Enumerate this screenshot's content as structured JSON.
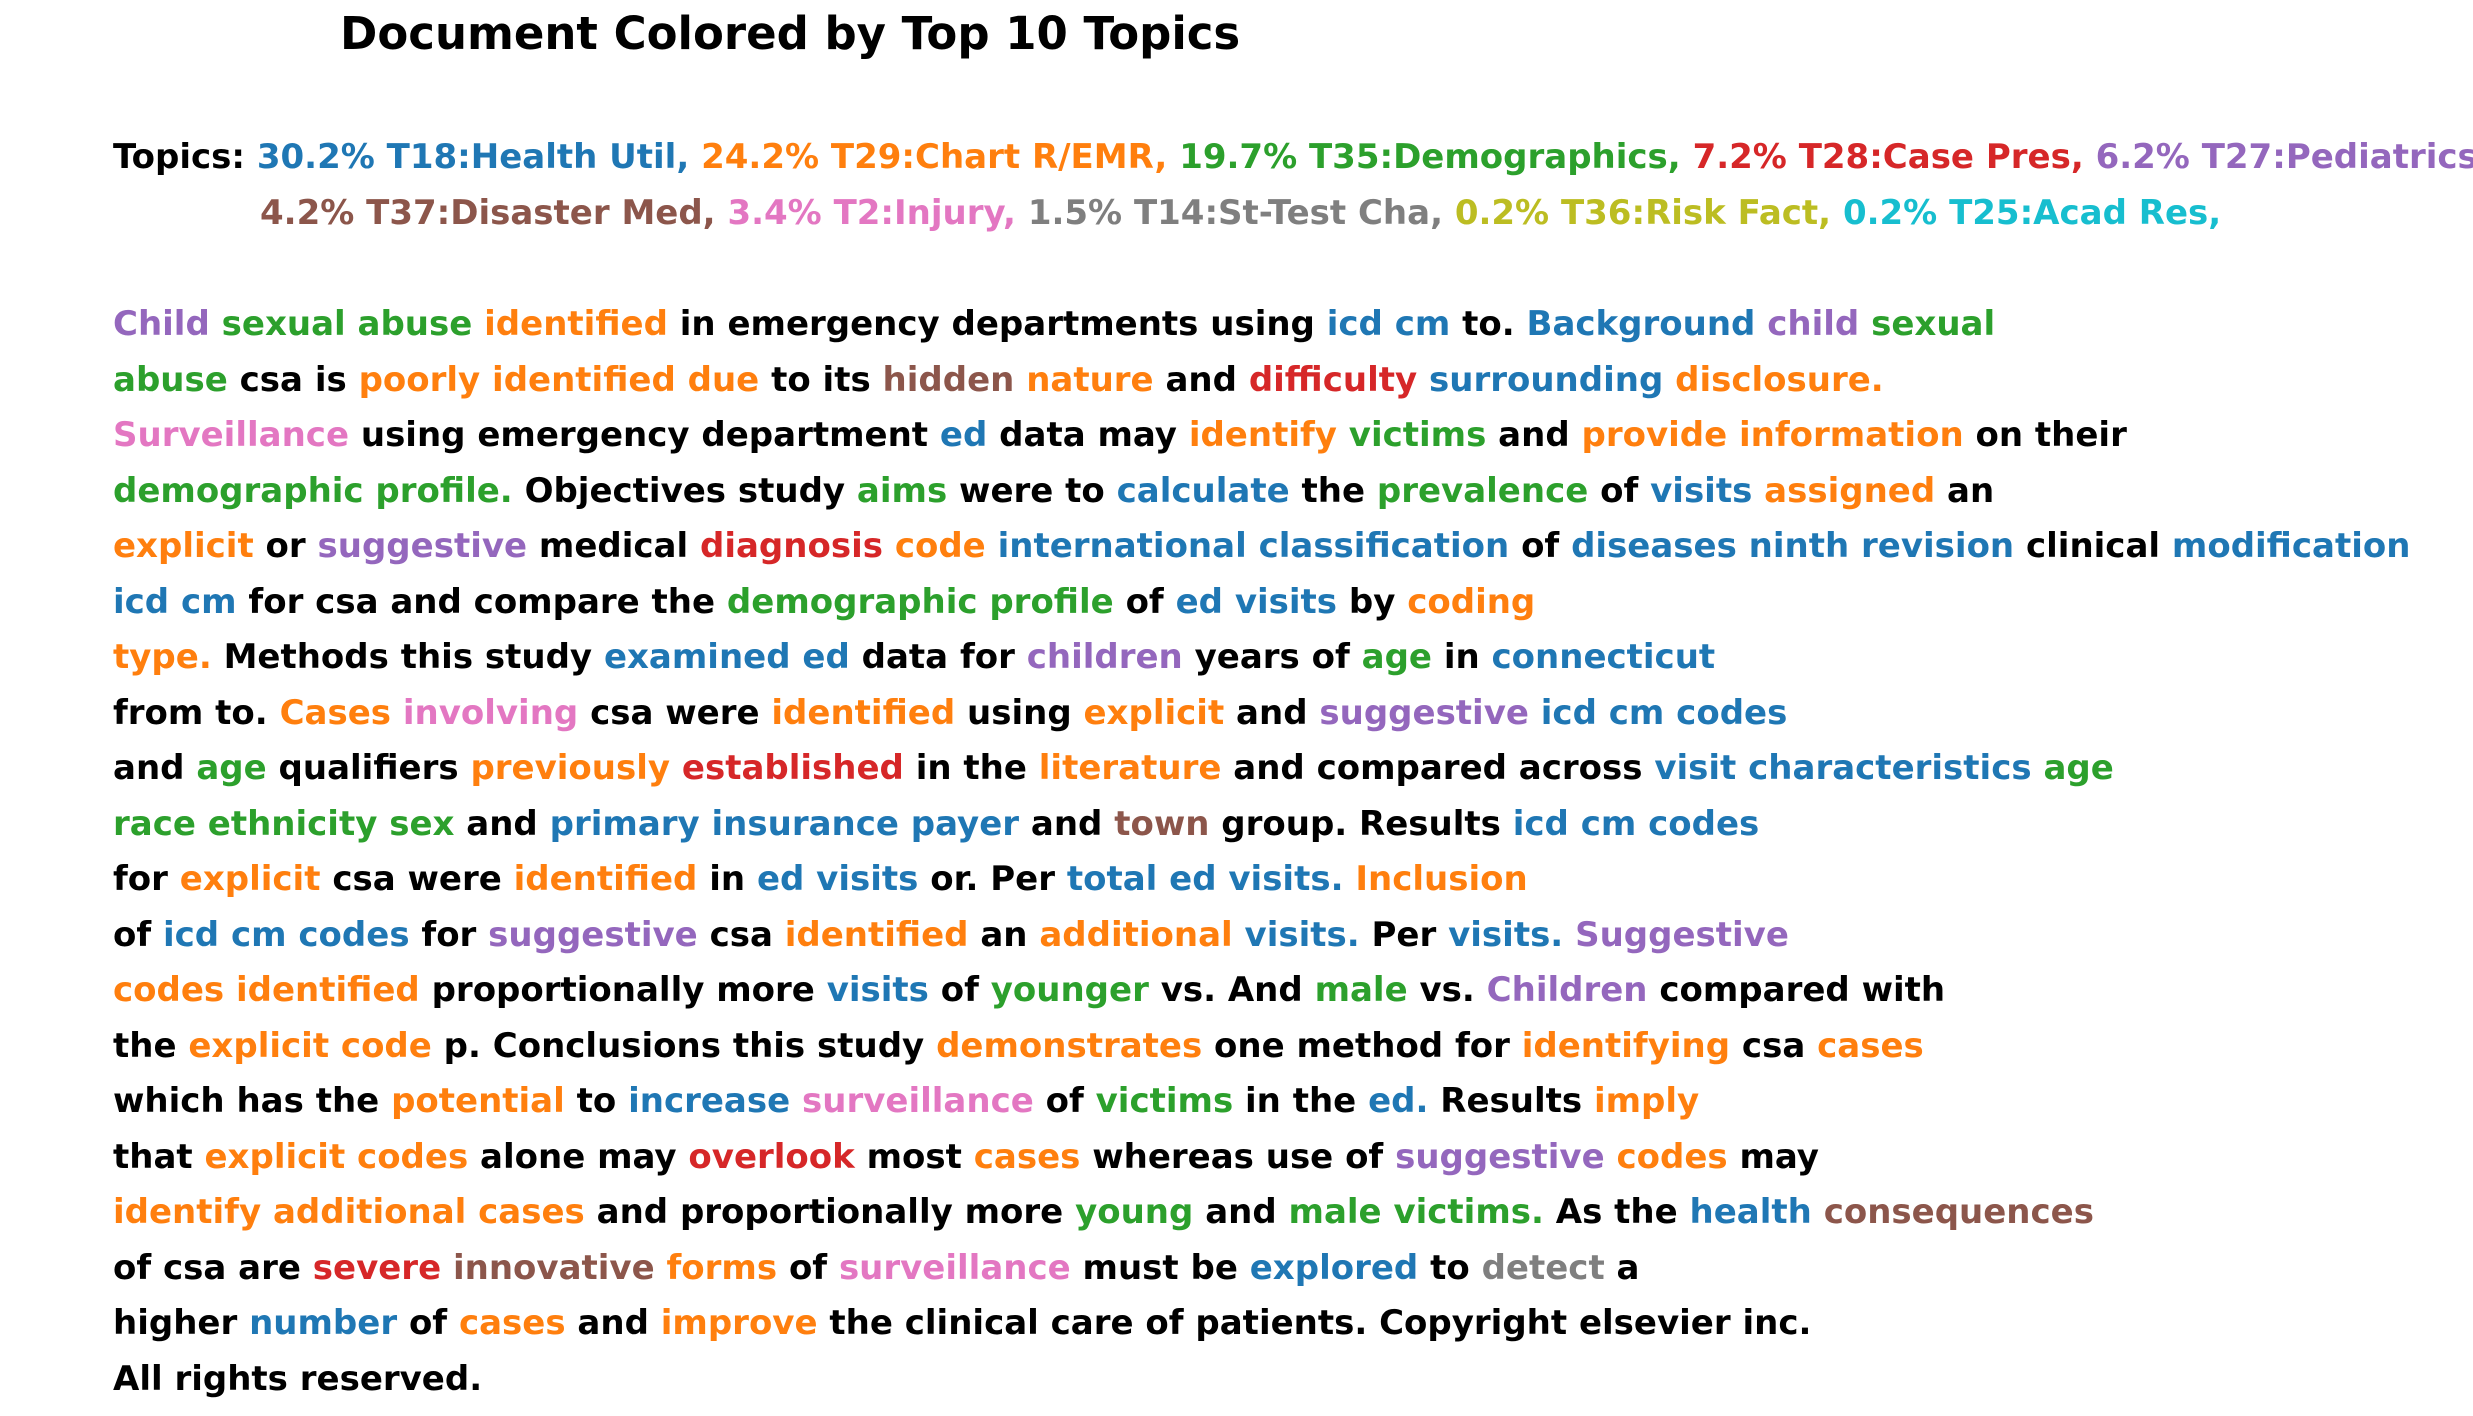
{
  "title": "Document Colored by Top 10 Topics",
  "topics_label": "Topics:",
  "colors": {
    "c0": "#000000",
    "t18": "#1f77b4",
    "t29": "#ff7f0e",
    "t35": "#2ca02c",
    "t28": "#d62728",
    "t27": "#9467bd",
    "t37": "#8c564b",
    "t2": "#e377c2",
    "t14": "#7f7f7f",
    "t36": "#bcbd22",
    "t25": "#17becf"
  },
  "topics": [
    [
      {
        "text": "30.2% T18:Health Util,",
        "c": "t18"
      },
      {
        "text": "24.2% T29:Chart R/EMR,",
        "c": "t29"
      },
      {
        "text": "19.7% T35:Demographics,",
        "c": "t35"
      },
      {
        "text": "7.2% T28:Case Pres,",
        "c": "t28"
      },
      {
        "text": "6.2% T27:Pediatrics,",
        "c": "t27"
      }
    ],
    [
      {
        "text": "4.2% T37:Disaster Med,",
        "c": "t37"
      },
      {
        "text": "3.4% T2:Injury,",
        "c": "t2"
      },
      {
        "text": "1.5% T14:St-Test Cha,",
        "c": "t14"
      },
      {
        "text": "0.2% T36:Risk Fact,",
        "c": "t36"
      },
      {
        "text": "0.2% T25:Acad Res,",
        "c": "t25"
      }
    ]
  ],
  "document_lines": [
    [
      [
        "Child",
        "t27"
      ],
      [
        "sexual abuse",
        "t35"
      ],
      [
        "identified",
        "t29"
      ],
      [
        "in emergency departments using",
        "c0"
      ],
      [
        "icd cm",
        "t18"
      ],
      [
        "to.",
        "c0"
      ],
      [
        "Background",
        "t18"
      ],
      [
        "child",
        "t27"
      ],
      [
        "sexual",
        "t35"
      ]
    ],
    [
      [
        "abuse",
        "t35"
      ],
      [
        "csa is",
        "c0"
      ],
      [
        "poorly identified due",
        "t29"
      ],
      [
        "to its",
        "c0"
      ],
      [
        "hidden",
        "t37"
      ],
      [
        "nature",
        "t29"
      ],
      [
        "and",
        "c0"
      ],
      [
        "difficulty",
        "t28"
      ],
      [
        "surrounding",
        "t18"
      ],
      [
        "disclosure.",
        "t29"
      ]
    ],
    [
      [
        "Surveillance",
        "t2"
      ],
      [
        "using emergency department",
        "c0"
      ],
      [
        "ed",
        "t18"
      ],
      [
        "data may",
        "c0"
      ],
      [
        "identify",
        "t29"
      ],
      [
        "victims",
        "t35"
      ],
      [
        "and",
        "c0"
      ],
      [
        "provide information",
        "t29"
      ],
      [
        "on their",
        "c0"
      ]
    ],
    [
      [
        "demographic profile.",
        "t35"
      ],
      [
        "Objectives study",
        "c0"
      ],
      [
        "aims",
        "t35"
      ],
      [
        "were to",
        "c0"
      ],
      [
        "calculate",
        "t18"
      ],
      [
        "the",
        "c0"
      ],
      [
        "prevalence",
        "t35"
      ],
      [
        "of",
        "c0"
      ],
      [
        "visits",
        "t18"
      ],
      [
        "assigned",
        "t29"
      ],
      [
        "an",
        "c0"
      ]
    ],
    [
      [
        "explicit",
        "t29"
      ],
      [
        "or",
        "c0"
      ],
      [
        "suggestive",
        "t27"
      ],
      [
        "medical",
        "c0"
      ],
      [
        "diagnosis",
        "t28"
      ],
      [
        "code",
        "t29"
      ],
      [
        "international classification",
        "t18"
      ],
      [
        "of",
        "c0"
      ],
      [
        "diseases ninth revision",
        "t18"
      ],
      [
        "clinical",
        "c0"
      ],
      [
        "modification",
        "t18"
      ]
    ],
    [
      [
        "icd cm",
        "t18"
      ],
      [
        "for csa and compare the",
        "c0"
      ],
      [
        "demographic profile",
        "t35"
      ],
      [
        "of",
        "c0"
      ],
      [
        "ed visits",
        "t18"
      ],
      [
        "by",
        "c0"
      ],
      [
        "coding",
        "t29"
      ]
    ],
    [
      [
        "type.",
        "t29"
      ],
      [
        "Methods this study",
        "c0"
      ],
      [
        "examined ed",
        "t18"
      ],
      [
        "data for",
        "c0"
      ],
      [
        "children",
        "t27"
      ],
      [
        "years of",
        "c0"
      ],
      [
        "age",
        "t35"
      ],
      [
        "in",
        "c0"
      ],
      [
        "connecticut",
        "t18"
      ]
    ],
    [
      [
        "from to.",
        "c0"
      ],
      [
        "Cases",
        "t29"
      ],
      [
        "involving",
        "t2"
      ],
      [
        "csa were",
        "c0"
      ],
      [
        "identified",
        "t29"
      ],
      [
        "using",
        "c0"
      ],
      [
        "explicit",
        "t29"
      ],
      [
        "and",
        "c0"
      ],
      [
        "suggestive",
        "t27"
      ],
      [
        "icd cm codes",
        "t18"
      ]
    ],
    [
      [
        "and",
        "c0"
      ],
      [
        "age",
        "t35"
      ],
      [
        "qualifiers",
        "c0"
      ],
      [
        "previously",
        "t29"
      ],
      [
        "established",
        "t28"
      ],
      [
        "in the",
        "c0"
      ],
      [
        "literature",
        "t29"
      ],
      [
        "and compared across",
        "c0"
      ],
      [
        "visit characteristics",
        "t18"
      ],
      [
        "age",
        "t35"
      ]
    ],
    [
      [
        "race ethnicity sex",
        "t35"
      ],
      [
        "and",
        "c0"
      ],
      [
        "primary insurance payer",
        "t18"
      ],
      [
        "and",
        "c0"
      ],
      [
        "town",
        "t37"
      ],
      [
        "group. Results",
        "c0"
      ],
      [
        "icd cm codes",
        "t18"
      ]
    ],
    [
      [
        "for",
        "c0"
      ],
      [
        "explicit",
        "t29"
      ],
      [
        "csa were",
        "c0"
      ],
      [
        "identified",
        "t29"
      ],
      [
        "in",
        "c0"
      ],
      [
        "ed visits",
        "t18"
      ],
      [
        "or. Per",
        "c0"
      ],
      [
        "total ed visits.",
        "t18"
      ],
      [
        "Inclusion",
        "t29"
      ]
    ],
    [
      [
        "of",
        "c0"
      ],
      [
        "icd cm codes",
        "t18"
      ],
      [
        "for",
        "c0"
      ],
      [
        "suggestive",
        "t27"
      ],
      [
        "csa",
        "c0"
      ],
      [
        "identified",
        "t29"
      ],
      [
        "an",
        "c0"
      ],
      [
        "additional",
        "t29"
      ],
      [
        "visits.",
        "t18"
      ],
      [
        "Per",
        "c0"
      ],
      [
        "visits.",
        "t18"
      ],
      [
        "Suggestive",
        "t27"
      ]
    ],
    [
      [
        "codes identified",
        "t29"
      ],
      [
        "proportionally more",
        "c0"
      ],
      [
        "visits",
        "t18"
      ],
      [
        "of",
        "c0"
      ],
      [
        "younger",
        "t35"
      ],
      [
        "vs. And",
        "c0"
      ],
      [
        "male",
        "t35"
      ],
      [
        "vs.",
        "c0"
      ],
      [
        "Children",
        "t27"
      ],
      [
        "compared with",
        "c0"
      ]
    ],
    [
      [
        "the",
        "c0"
      ],
      [
        "explicit code",
        "t29"
      ],
      [
        "p. Conclusions this study",
        "c0"
      ],
      [
        "demonstrates",
        "t29"
      ],
      [
        "one method for",
        "c0"
      ],
      [
        "identifying",
        "t29"
      ],
      [
        "csa",
        "c0"
      ],
      [
        "cases",
        "t29"
      ]
    ],
    [
      [
        "which has the",
        "c0"
      ],
      [
        "potential",
        "t29"
      ],
      [
        "to",
        "c0"
      ],
      [
        "increase",
        "t18"
      ],
      [
        "surveillance",
        "t2"
      ],
      [
        "of",
        "c0"
      ],
      [
        "victims",
        "t35"
      ],
      [
        "in the",
        "c0"
      ],
      [
        "ed.",
        "t18"
      ],
      [
        "Results",
        "c0"
      ],
      [
        "imply",
        "t29"
      ]
    ],
    [
      [
        "that",
        "c0"
      ],
      [
        "explicit codes",
        "t29"
      ],
      [
        "alone may",
        "c0"
      ],
      [
        "overlook",
        "t28"
      ],
      [
        "most",
        "c0"
      ],
      [
        "cases",
        "t29"
      ],
      [
        "whereas use of",
        "c0"
      ],
      [
        "suggestive",
        "t27"
      ],
      [
        "codes",
        "t29"
      ],
      [
        "may",
        "c0"
      ]
    ],
    [
      [
        "identify additional cases",
        "t29"
      ],
      [
        "and proportionally more",
        "c0"
      ],
      [
        "young",
        "t35"
      ],
      [
        "and",
        "c0"
      ],
      [
        "male victims.",
        "t35"
      ],
      [
        "As the",
        "c0"
      ],
      [
        "health",
        "t18"
      ],
      [
        "consequences",
        "t37"
      ]
    ],
    [
      [
        "of csa are",
        "c0"
      ],
      [
        "severe",
        "t28"
      ],
      [
        "innovative",
        "t37"
      ],
      [
        "forms",
        "t29"
      ],
      [
        "of",
        "c0"
      ],
      [
        "surveillance",
        "t2"
      ],
      [
        "must be",
        "c0"
      ],
      [
        "explored",
        "t18"
      ],
      [
        "to",
        "c0"
      ],
      [
        "detect",
        "t14"
      ],
      [
        "a",
        "c0"
      ]
    ],
    [
      [
        "higher",
        "c0"
      ],
      [
        "number",
        "t18"
      ],
      [
        "of",
        "c0"
      ],
      [
        "cases",
        "t29"
      ],
      [
        "and",
        "c0"
      ],
      [
        "improve",
        "t29"
      ],
      [
        "the clinical care of patients. Copyright elsevier inc.",
        "c0"
      ]
    ],
    [
      [
        "All rights reserved.",
        "c0"
      ]
    ]
  ]
}
